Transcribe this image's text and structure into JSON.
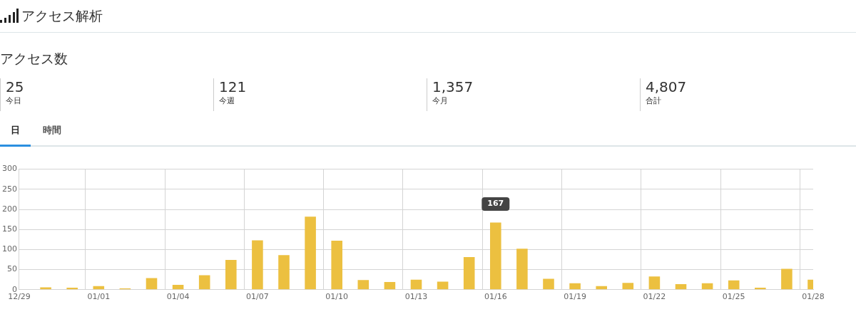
{
  "chart_data": [
    {
      "type": "other",
      "title": "アクセス解析",
      "subtitle": "アクセス数",
      "annotations": [
        "25",
        "今日",
        "121",
        "今週",
        "1,357",
        "今月",
        "4,807",
        "合計",
        "日",
        "時間"
      ]
    },
    {
      "type": "bar",
      "categories": [
        "12/29",
        null,
        null,
        "01/01",
        null,
        null,
        "01/04",
        null,
        null,
        "01/07",
        null,
        null,
        "01/10",
        null,
        null,
        "01/13",
        null,
        null,
        "01/16",
        null,
        null,
        "01/19",
        null,
        null,
        "01/22",
        null,
        null,
        "01/25",
        null,
        null,
        "01/28"
      ],
      "series": [
        {
          "color": "#ecc040",
          "values": [
            1,
            6,
            5,
            9,
            3,
            29,
            12,
            36,
            74,
            123,
            86,
            182,
            122,
            24,
            19,
            25,
            20,
            81,
            167,
            102,
            27,
            16,
            9,
            17,
            33,
            14,
            16,
            23,
            5,
            52,
            25
          ],
          "value_labels": [
            null,
            null,
            null,
            null,
            null,
            null,
            null,
            null,
            null,
            null,
            null,
            null,
            null,
            null,
            null,
            null,
            null,
            null,
            "167",
            null,
            null,
            null,
            null,
            null,
            null,
            null,
            null,
            null,
            null,
            null,
            null
          ]
        }
      ],
      "ylim": [
        0,
        300
      ],
      "yticks": [
        0,
        50,
        100,
        150,
        200,
        250,
        300
      ],
      "grid": true,
      "legend": false
    }
  ]
}
